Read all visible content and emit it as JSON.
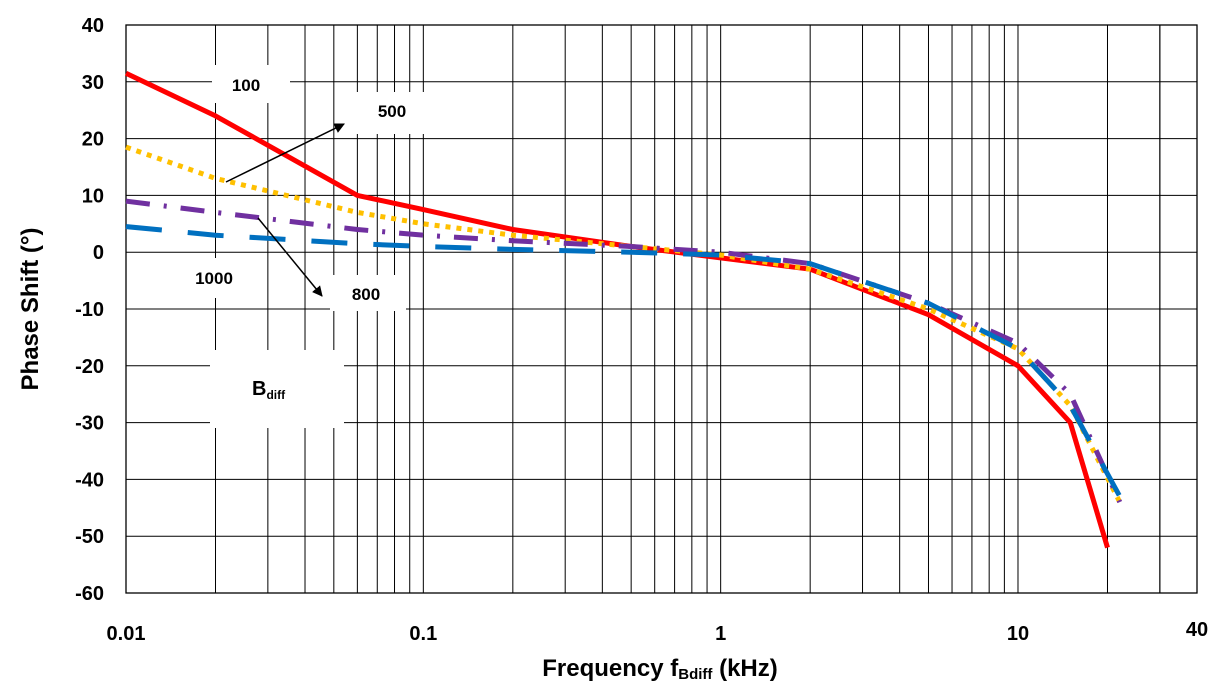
{
  "chart_data": {
    "type": "line",
    "xscale": "log",
    "xlim": [
      0.01,
      40
    ],
    "ylim": [
      -60,
      40
    ],
    "grid": true,
    "xlabel_main": "Frequency f",
    "xlabel_sub": "Bdiff",
    "xlabel_unit": " (kHz)",
    "ylabel": "Phase Shift (°)",
    "x_ticks": [
      {
        "value": 0.01,
        "label": "0.01"
      },
      {
        "value": 0.1,
        "label": "0.1"
      },
      {
        "value": 1,
        "label": "1"
      },
      {
        "value": 10,
        "label": "10"
      },
      {
        "value": 40,
        "label": "40"
      }
    ],
    "y_ticks": [
      40,
      30,
      20,
      10,
      0,
      -10,
      -20,
      -30,
      -40,
      -50,
      -60
    ],
    "legend_title_main": "B",
    "legend_title_sub": "diff",
    "series": [
      {
        "name": "100",
        "color": "#ff0000",
        "style": "solid",
        "x": [
          0.01,
          0.02,
          0.06,
          0.1,
          0.2,
          0.5,
          1,
          2,
          5,
          10,
          15,
          20
        ],
        "y": [
          31.5,
          24,
          10,
          7.5,
          4,
          1,
          -1,
          -3,
          -11,
          -20,
          -30,
          -52
        ]
      },
      {
        "name": "500",
        "color": "#ffc000",
        "style": "dot",
        "x": [
          0.01,
          0.02,
          0.06,
          0.1,
          0.2,
          0.5,
          1,
          2,
          5,
          10,
          15,
          22
        ],
        "y": [
          18.5,
          13,
          7,
          5,
          3,
          1,
          -0.5,
          -3,
          -10,
          -17,
          -27,
          -44
        ]
      },
      {
        "name": "800",
        "color": "#7030a0",
        "style": "dashdot",
        "x": [
          0.01,
          0.02,
          0.06,
          0.1,
          0.2,
          0.5,
          1,
          2,
          5,
          10,
          15,
          22
        ],
        "y": [
          9,
          7,
          4,
          3,
          2,
          1,
          0,
          -2,
          -9,
          -16,
          -25,
          -44
        ]
      },
      {
        "name": "1000",
        "color": "#0070c0",
        "style": "dash",
        "x": [
          0.01,
          0.02,
          0.06,
          0.1,
          0.2,
          0.5,
          1,
          2,
          5,
          10,
          15,
          22
        ],
        "y": [
          4.5,
          3,
          1.5,
          1,
          0.5,
          0,
          -0.5,
          -2,
          -9,
          -17,
          -27,
          -43
        ]
      }
    ],
    "annotations": [
      {
        "label": "100"
      },
      {
        "label": "500"
      },
      {
        "label": "800"
      },
      {
        "label": "1000"
      }
    ]
  }
}
